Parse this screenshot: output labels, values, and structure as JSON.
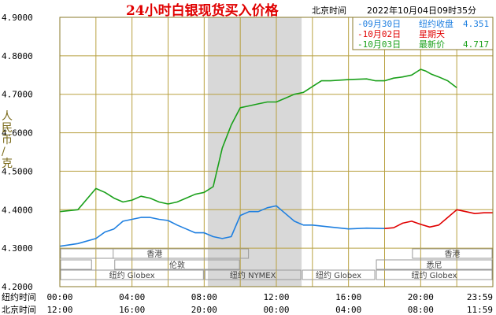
{
  "header": {
    "title": "24小时白银现货买入价格",
    "location": "北京时间",
    "timestamp": "2022年10月04日09时35分"
  },
  "axis": {
    "ylabel_chars": [
      "人",
      "民",
      "币",
      "/",
      "克"
    ],
    "row_labels": [
      "纽约时间",
      "北京时间"
    ],
    "newyork_ticks": [
      "00:00",
      "04:00",
      "08:00",
      "12:00",
      "16:00",
      "20:00",
      "23:59"
    ],
    "beijing_ticks": [
      "12:00",
      "16:00",
      "20:00",
      "00:00",
      "04:00",
      "08:00",
      "11:59"
    ]
  },
  "legend": [
    {
      "date": "09月30日",
      "label": "纽约收盘",
      "value": "4.351",
      "color": "#1e7fe0"
    },
    {
      "date": "10月02日",
      "label": "星期天",
      "value": "",
      "color": "#e00000"
    },
    {
      "date": "10月03日",
      "label": "最新价",
      "value": "4.717",
      "color": "#1aa01a"
    }
  ],
  "markets": {
    "hongkong_label": "香港",
    "london_label": "伦敦",
    "sydney_label": "悉尼",
    "globex_label": "纽约 Globex",
    "nymex_label": "纽约 NYMEX"
  },
  "colors": {
    "grid": "#b8a040",
    "shade": "#d8d8d8",
    "blue": "#1e7fe0",
    "red": "#e00000",
    "green": "#1aa01a"
  },
  "chart_data": {
    "type": "line",
    "title": "24小时白银现货买入价格",
    "ylabel": "人民币/克",
    "xlabel": "纽约时间 / 北京时间",
    "xlim": [
      0,
      24
    ],
    "ylim": [
      4.2,
      4.9
    ],
    "yticks": [
      4.9,
      4.8,
      4.7,
      4.6,
      4.5,
      4.4,
      4.3,
      4.2
    ],
    "x_unit": "hours (New York time)",
    "series": [
      {
        "name": "09月30日 纽约收盘",
        "color": "#1e7fe0",
        "x": [
          0,
          1,
          2,
          2.5,
          3,
          3.5,
          4,
          4.5,
          5,
          5.5,
          6,
          6.5,
          7,
          7.5,
          8,
          8.5,
          9,
          9.5,
          10,
          10.5,
          11,
          11.5,
          12,
          12.5,
          13,
          13.5,
          14,
          15,
          16,
          17,
          18
        ],
        "values": [
          4.305,
          4.312,
          4.325,
          4.342,
          4.35,
          4.37,
          4.375,
          4.38,
          4.38,
          4.375,
          4.372,
          4.36,
          4.35,
          4.34,
          4.34,
          4.33,
          4.325,
          4.33,
          4.385,
          4.395,
          4.395,
          4.405,
          4.41,
          4.39,
          4.37,
          4.36,
          4.36,
          4.355,
          4.35,
          4.352,
          4.351
        ]
      },
      {
        "name": "10月02日 星期天",
        "color": "#e00000",
        "x": [
          18,
          18.5,
          19,
          19.5,
          20,
          20.5,
          21,
          21.5,
          22,
          22.5,
          23,
          23.5,
          24
        ],
        "values": [
          4.351,
          4.353,
          4.365,
          4.37,
          4.362,
          4.355,
          4.36,
          4.38,
          4.4,
          4.395,
          4.39,
          4.392,
          4.392
        ]
      },
      {
        "name": "10月03日 最新价",
        "color": "#1aa01a",
        "x": [
          0,
          1,
          2,
          2.5,
          3,
          3.5,
          4,
          4.5,
          5,
          5.5,
          6,
          6.5,
          7,
          7.5,
          8,
          8.5,
          9,
          9.5,
          10,
          10.5,
          11,
          11.5,
          12,
          12.5,
          13,
          13.5,
          14,
          14.5,
          15,
          16,
          17,
          17.5,
          18,
          18.5,
          19,
          19.5,
          20,
          20.3,
          20.6,
          21,
          21.5,
          22
        ],
        "values": [
          4.395,
          4.4,
          4.455,
          4.445,
          4.43,
          4.42,
          4.425,
          4.435,
          4.43,
          4.42,
          4.415,
          4.42,
          4.43,
          4.44,
          4.445,
          4.46,
          4.56,
          4.62,
          4.665,
          4.67,
          4.675,
          4.68,
          4.68,
          4.69,
          4.7,
          4.705,
          4.72,
          4.735,
          4.735,
          4.738,
          4.74,
          4.735,
          4.735,
          4.742,
          4.745,
          4.75,
          4.765,
          4.76,
          4.752,
          4.745,
          4.735,
          4.717
        ]
      }
    ]
  }
}
